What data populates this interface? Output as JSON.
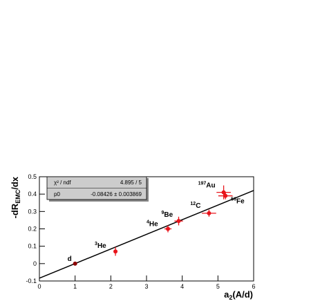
{
  "chart_data": {
    "type": "scatter",
    "x_label": {
      "main": "a",
      "sub": "2",
      "rest": "(A/d)"
    },
    "y_label": {
      "main": "-dR",
      "sub": "EMC",
      "rest": "/dx"
    },
    "xlim": [
      0,
      6
    ],
    "xticks": [
      0,
      1,
      2,
      3,
      4,
      5,
      6
    ],
    "ylim": [
      -0.1,
      0.5
    ],
    "yticks": [
      -0.1,
      0,
      0.1,
      0.2,
      0.3,
      0.4,
      0.5
    ],
    "series": [
      {
        "color": "#e8141b",
        "labels": [
          {
            "sup": "",
            "name": "d"
          },
          {
            "sup": "3",
            "name": "He"
          },
          {
            "sup": "4",
            "name": "He"
          },
          {
            "sup": "9",
            "name": "Be"
          },
          {
            "sup": "12",
            "name": "C"
          },
          {
            "sup": "197",
            "name": "Au"
          },
          {
            "sup": "56",
            "name": "Fe"
          }
        ],
        "x": [
          1.0,
          2.13,
          3.6,
          3.9,
          4.75,
          5.16,
          5.21
        ],
        "values": [
          0.0,
          0.07,
          0.2,
          0.245,
          0.29,
          0.41,
          0.39
        ],
        "x_errors": [
          0.02,
          0.03,
          0.1,
          0.12,
          0.2,
          0.2,
          0.2
        ],
        "y_errors": [
          0.005,
          0.025,
          0.02,
          0.025,
          0.02,
          0.04,
          0.02
        ]
      }
    ],
    "fit": {
      "color": "#000000",
      "x": [
        0,
        6
      ],
      "values": [
        -0.084,
        0.421
      ]
    },
    "stats": {
      "rows": [
        [
          "χ² / ndf",
          "4.895 / 5"
        ],
        [
          "p0",
          "-0.08426 ± 0.003869"
        ]
      ]
    }
  }
}
